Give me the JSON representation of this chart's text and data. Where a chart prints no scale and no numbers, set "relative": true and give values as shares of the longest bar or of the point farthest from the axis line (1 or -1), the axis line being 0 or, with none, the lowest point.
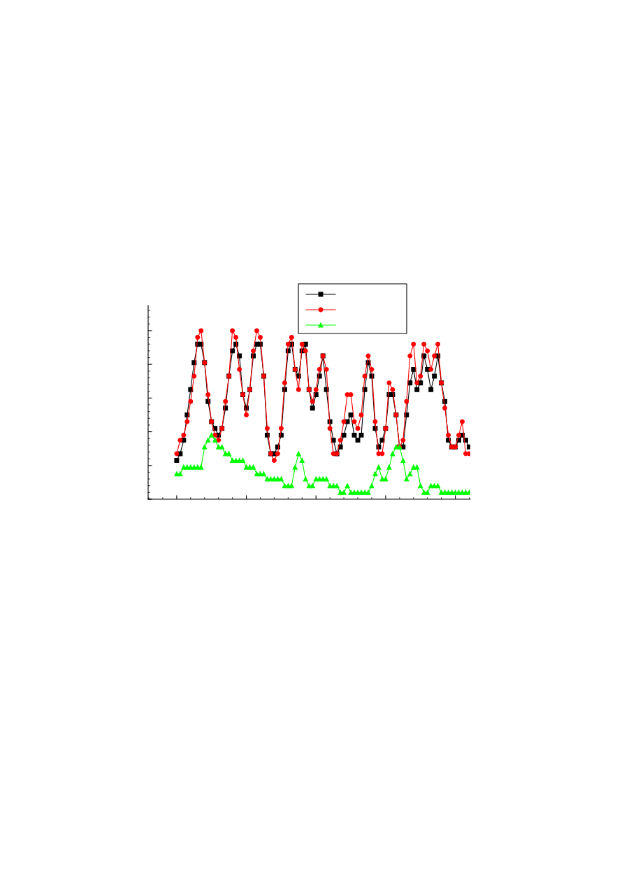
{
  "chart_data": {
    "type": "line",
    "relative": true,
    "grid": false,
    "categories": [
      null,
      null,
      null,
      null,
      null,
      null,
      null,
      null,
      null,
      null,
      null,
      null,
      null,
      null,
      null,
      null,
      null,
      null,
      null,
      null,
      null,
      null,
      null,
      null,
      null,
      null,
      null,
      null,
      null,
      null,
      null,
      null,
      null,
      null,
      null,
      null,
      null,
      null,
      null,
      null,
      null,
      null,
      null,
      null,
      null,
      null,
      null,
      null,
      null,
      null,
      null,
      null,
      null,
      null,
      null,
      null,
      null,
      null,
      null,
      null,
      null,
      null,
      null,
      null,
      null,
      null,
      null,
      null,
      null,
      null,
      null,
      null,
      null,
      null,
      null,
      null,
      null,
      null,
      null,
      null,
      null,
      null,
      null,
      null,
      null
    ],
    "series": [
      {
        "color": "#000000",
        "marker": "square",
        "values": [
          0.23,
          0.27,
          0.35,
          0.5,
          0.65,
          0.81,
          0.92,
          0.92,
          0.81,
          0.58,
          0.46,
          0.42,
          0.38,
          0.42,
          0.54,
          0.73,
          0.88,
          0.92,
          0.85,
          0.62,
          0.54,
          0.65,
          0.85,
          0.92,
          0.92,
          0.73,
          0.38,
          0.27,
          0.27,
          0.31,
          0.38,
          0.65,
          0.88,
          0.92,
          0.77,
          0.73,
          0.88,
          0.92,
          0.65,
          0.54,
          0.62,
          0.73,
          0.85,
          0.65,
          0.46,
          0.35,
          0.27,
          0.31,
          0.38,
          0.46,
          0.5,
          0.38,
          0.35,
          0.38,
          0.65,
          0.81,
          0.73,
          0.42,
          0.31,
          0.35,
          0.42,
          0.62,
          0.62,
          0.5,
          0.31,
          0.31,
          0.5,
          0.69,
          0.77,
          0.65,
          0.69,
          0.85,
          0.77,
          0.65,
          0.73,
          0.85,
          0.69,
          0.58,
          0.35,
          0.31,
          0.31,
          0.35,
          0.38,
          0.35,
          0.31
        ]
      },
      {
        "color": "#ff0000",
        "marker": "circle",
        "values": [
          0.27,
          0.35,
          0.38,
          0.46,
          0.58,
          0.73,
          0.96,
          1.0,
          0.81,
          0.62,
          0.46,
          0.38,
          0.35,
          0.42,
          0.58,
          0.73,
          1.0,
          0.96,
          0.77,
          0.62,
          0.5,
          0.65,
          0.88,
          1.0,
          0.96,
          0.73,
          0.42,
          0.27,
          0.23,
          0.27,
          0.42,
          0.69,
          0.92,
          0.96,
          0.77,
          0.65,
          0.92,
          0.88,
          0.65,
          0.58,
          0.65,
          0.77,
          0.85,
          0.77,
          0.42,
          0.27,
          0.27,
          0.35,
          0.46,
          0.62,
          0.62,
          0.46,
          0.42,
          0.5,
          0.73,
          0.85,
          0.77,
          0.46,
          0.27,
          0.27,
          0.42,
          0.69,
          0.65,
          0.5,
          0.31,
          0.35,
          0.58,
          0.85,
          0.92,
          0.69,
          0.73,
          0.92,
          0.88,
          0.77,
          0.85,
          0.92,
          0.69,
          0.54,
          0.38,
          0.31,
          0.31,
          0.38,
          0.46,
          0.27,
          0.27
        ]
      },
      {
        "color": "#00ff00",
        "marker": "triangle",
        "values": [
          0.15,
          0.15,
          0.19,
          0.19,
          0.19,
          0.19,
          0.19,
          0.19,
          0.31,
          0.35,
          0.38,
          0.35,
          0.31,
          0.31,
          0.27,
          0.27,
          0.23,
          0.23,
          0.23,
          0.23,
          0.19,
          0.19,
          0.19,
          0.15,
          0.15,
          0.15,
          0.12,
          0.12,
          0.12,
          0.12,
          0.12,
          0.08,
          0.08,
          0.08,
          0.19,
          0.27,
          0.23,
          0.12,
          0.08,
          0.08,
          0.12,
          0.12,
          0.12,
          0.12,
          0.08,
          0.08,
          0.08,
          0.04,
          0.04,
          0.08,
          0.04,
          0.04,
          0.04,
          0.04,
          0.04,
          0.04,
          0.08,
          0.15,
          0.19,
          0.12,
          0.12,
          0.19,
          0.27,
          0.31,
          0.31,
          0.23,
          0.12,
          0.15,
          0.19,
          0.19,
          0.08,
          0.04,
          0.04,
          0.08,
          0.08,
          0.08,
          0.04,
          0.04,
          0.04,
          0.04,
          0.04,
          0.04,
          0.04,
          0.04,
          0.04
        ]
      }
    ]
  }
}
